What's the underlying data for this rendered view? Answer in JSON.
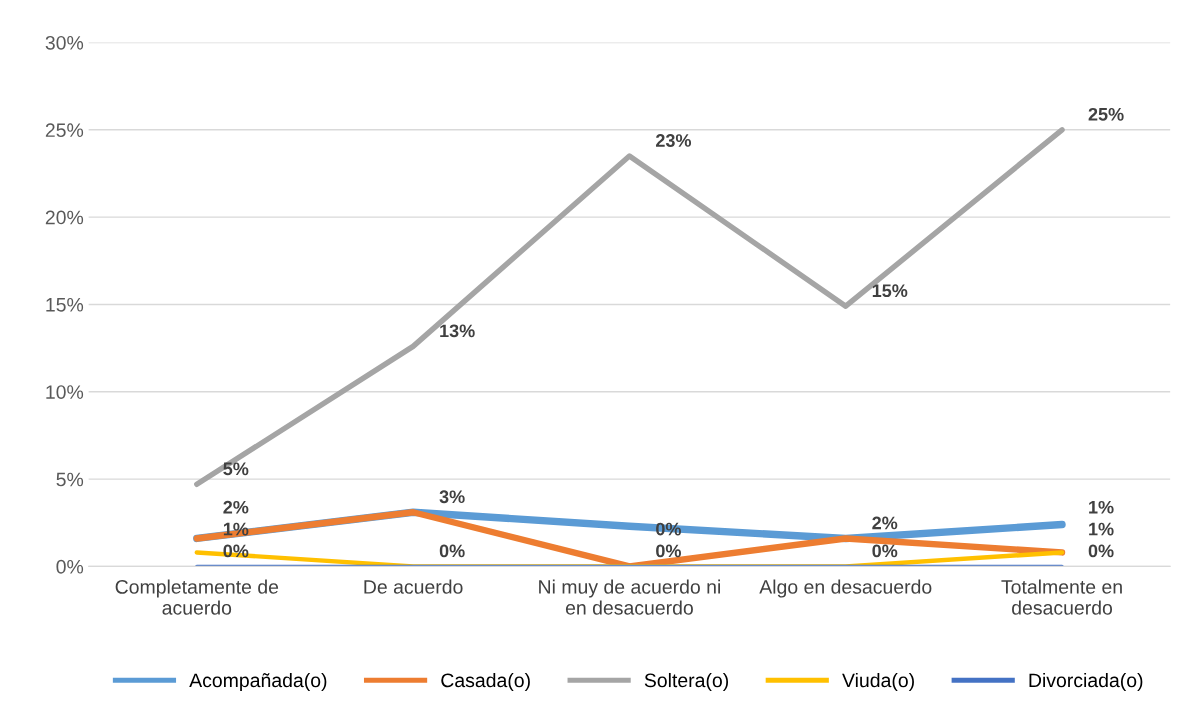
{
  "chart_data": {
    "type": "line",
    "categories": [
      "Completamente de acuerdo",
      "De acuerdo",
      "Ni muy de acuerdo ni en desacuerdo",
      "Algo en desacuerdo",
      "Totalmente en desacuerdo"
    ],
    "series": [
      {
        "name": "Acompañada(o)",
        "color": "#5b9bd5",
        "values": [
          1.6,
          3.1,
          2.3,
          1.6,
          2.4
        ],
        "value_labels": [
          null,
          null,
          null,
          null,
          null
        ]
      },
      {
        "name": "Casada(o)",
        "color": "#ed7d31",
        "values": [
          1.6,
          3.1,
          0,
          1.6,
          0.8
        ],
        "value_labels": [
          "2%",
          "3%",
          "0%",
          "2%",
          "1%"
        ]
      },
      {
        "name": "Soltera(o)",
        "color": "#a5a5a5",
        "values": [
          4.7,
          12.6,
          23.5,
          14.9,
          25.0
        ],
        "value_labels": [
          "5%",
          "13%",
          "23%",
          "15%",
          "25%"
        ]
      },
      {
        "name": "Viuda(o)",
        "color": "#ffc000",
        "values": [
          0.8,
          0,
          0,
          0,
          0.8
        ],
        "value_labels": [
          "1%",
          null,
          "0%",
          null,
          "1%"
        ]
      },
      {
        "name": "Divorciada(o)",
        "color": "#4472c4",
        "values": [
          0,
          0,
          0,
          0,
          0
        ],
        "value_labels": [
          "0%",
          "0%",
          null,
          "0%",
          "0%"
        ]
      }
    ],
    "ylim": [
      0,
      30
    ],
    "yticks": [
      {
        "value": 0,
        "label": "0%"
      },
      {
        "value": 5,
        "label": "5%"
      },
      {
        "value": 10,
        "label": "10%"
      },
      {
        "value": 15,
        "label": "15%"
      },
      {
        "value": 20,
        "label": "20%"
      },
      {
        "value": 25,
        "label": "25%"
      },
      {
        "value": 30,
        "label": "30%"
      }
    ],
    "grid": "y",
    "legend": "bottom",
    "marker": "none",
    "line_style": "solid"
  }
}
